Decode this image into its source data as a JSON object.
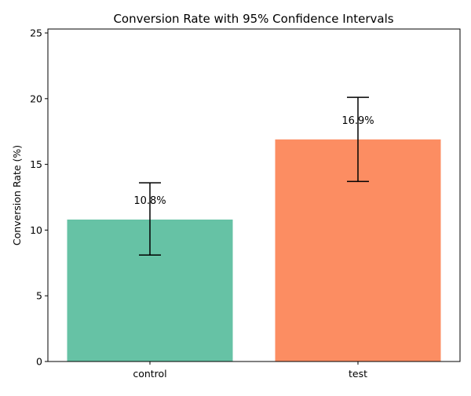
{
  "chart_data": {
    "type": "bar",
    "title": "Conversion Rate with 95% Confidence Intervals",
    "xlabel": "",
    "ylabel": "Conversion Rate (%)",
    "ylim": [
      0,
      25.3
    ],
    "yticks": [
      "0",
      "5",
      "10",
      "15",
      "20",
      "25"
    ],
    "categories": [
      "control",
      "test"
    ],
    "values": [
      10.8,
      16.9
    ],
    "ci_lower": [
      8.1,
      13.7
    ],
    "ci_upper": [
      13.6,
      20.1
    ],
    "value_labels": [
      "10.8%",
      "16.9%"
    ],
    "colors": [
      "#66c2a5",
      "#fc8d62"
    ],
    "error_bar_color": "#000000",
    "grid": false
  }
}
